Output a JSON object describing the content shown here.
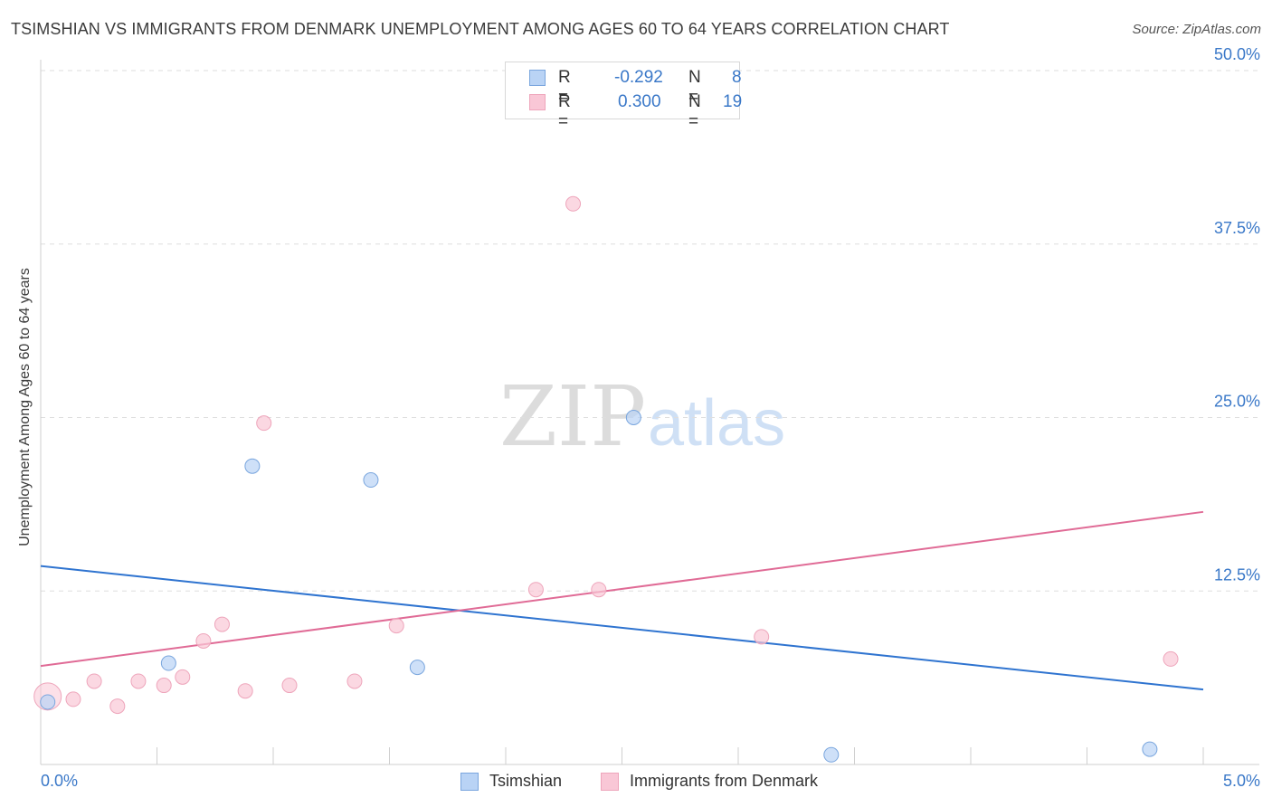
{
  "title": "TSIMSHIAN VS IMMIGRANTS FROM DENMARK UNEMPLOYMENT AMONG AGES 60 TO 64 YEARS CORRELATION CHART",
  "source": "Source: ZipAtlas.com",
  "watermark": {
    "zip": "ZIP",
    "atlas": "atlas"
  },
  "legend": {
    "r_label": "R =",
    "n_label": "N =",
    "series": [
      {
        "name": "Tsimshian",
        "r": "-0.292",
        "n": "8"
      },
      {
        "name": "Immigrants from Denmark",
        "r": "0.300",
        "n": "19"
      }
    ]
  },
  "colors": {
    "blue_fill": "#b9d3f5",
    "blue_stroke": "#7aa6de",
    "blue_line": "#2f74d0",
    "pink_fill": "#f9c7d6",
    "pink_stroke": "#eea5bb",
    "pink_line": "#e06b96",
    "tick_text": "#3a78c8"
  },
  "chart_data": {
    "type": "scatter",
    "title": "TSIMSHIAN VS IMMIGRANTS FROM DENMARK UNEMPLOYMENT AMONG AGES 60 TO 64 YEARS CORRELATION CHART",
    "xlabel": "",
    "ylabel": "Unemployment Among Ages 60 to 64 years",
    "xlim": [
      0,
      5
    ],
    "ylim": [
      0,
      50
    ],
    "x_tick_labels": [
      "0.0%",
      "5.0%"
    ],
    "y_ticks": [
      12.5,
      25.0,
      37.5,
      50.0
    ],
    "y_tick_labels": [
      "12.5%",
      "25.0%",
      "37.5%",
      "50.0%"
    ],
    "grid": true,
    "series": [
      {
        "name": "Tsimshian",
        "points": [
          {
            "x": 0.03,
            "y": 4.5
          },
          {
            "x": 0.55,
            "y": 7.3
          },
          {
            "x": 0.91,
            "y": 21.5
          },
          {
            "x": 1.42,
            "y": 20.5
          },
          {
            "x": 1.62,
            "y": 7.0
          },
          {
            "x": 2.55,
            "y": 25.0
          },
          {
            "x": 3.4,
            "y": 0.7
          },
          {
            "x": 4.77,
            "y": 1.1
          }
        ],
        "trend": {
          "x": [
            0,
            5
          ],
          "y": [
            14.3,
            5.4
          ]
        }
      },
      {
        "name": "Immigrants from Denmark",
        "points": [
          {
            "x": 0.03,
            "y": 4.9,
            "large": true
          },
          {
            "x": 0.14,
            "y": 4.7
          },
          {
            "x": 0.23,
            "y": 6.0
          },
          {
            "x": 0.33,
            "y": 4.2
          },
          {
            "x": 0.42,
            "y": 6.0
          },
          {
            "x": 0.53,
            "y": 5.7
          },
          {
            "x": 0.61,
            "y": 6.3
          },
          {
            "x": 0.7,
            "y": 8.9
          },
          {
            "x": 0.78,
            "y": 10.1
          },
          {
            "x": 0.88,
            "y": 5.3
          },
          {
            "x": 0.96,
            "y": 24.6
          },
          {
            "x": 1.07,
            "y": 5.7
          },
          {
            "x": 1.35,
            "y": 6.0
          },
          {
            "x": 1.53,
            "y": 10.0
          },
          {
            "x": 2.13,
            "y": 12.6
          },
          {
            "x": 2.29,
            "y": 40.4
          },
          {
            "x": 2.4,
            "y": 12.6
          },
          {
            "x": 3.1,
            "y": 9.2
          },
          {
            "x": 4.86,
            "y": 7.6
          }
        ],
        "trend": {
          "x": [
            0,
            5
          ],
          "y": [
            7.1,
            18.2
          ]
        }
      }
    ]
  }
}
